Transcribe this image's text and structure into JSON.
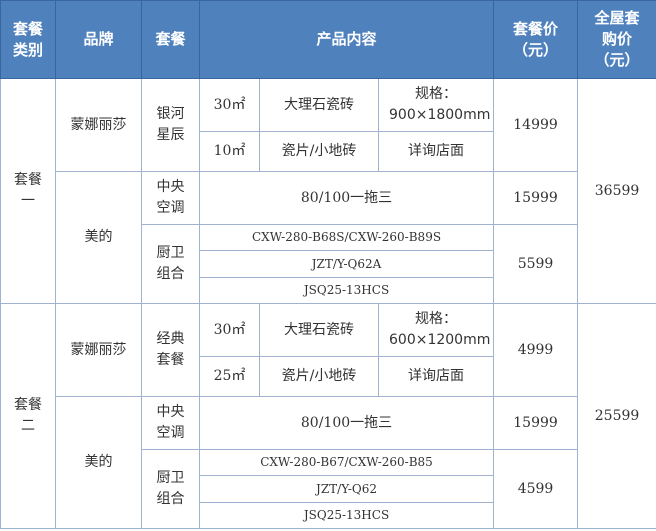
{
  "colors": {
    "header_bg": "#4f81bd",
    "header_text": "#ffffff",
    "border": "#9fb3d1"
  },
  "headers": [
    "套餐类别",
    "品牌",
    "套餐",
    "产品内容",
    "套餐价（元）",
    "全屋套购价（元）"
  ],
  "sets": [
    {
      "category": "套餐一",
      "total": "36599",
      "tile": {
        "brand": "蒙娜丽莎",
        "package": "银河星辰",
        "price": "14999",
        "rows": [
          {
            "area": "30㎡",
            "product": "大理石瓷砖",
            "spec": "规格：900×1800mm"
          },
          {
            "area": "10㎡",
            "product": "瓷片/小地砖",
            "spec": "详询店面"
          }
        ]
      },
      "midea": {
        "brand": "美的",
        "ac_name": "中央空调",
        "ac_content": "80/100一拖三",
        "ac_price": "15999",
        "kb_name": "厨卫组合",
        "kb_items": [
          "CXW-280-B68S/CXW-260-B89S",
          "JZT/Y-Q62A",
          "JSQ25-13HCS"
        ],
        "kb_price": "5599"
      }
    },
    {
      "category": "套餐二",
      "total": "25599",
      "tile": {
        "brand": "蒙娜丽莎",
        "package": "经典套餐",
        "price": "4999",
        "rows": [
          {
            "area": "30㎡",
            "product": "大理石瓷砖",
            "spec": "规格：600×1200mm"
          },
          {
            "area": "25㎡",
            "product": "瓷片/小地砖",
            "spec": "详询店面"
          }
        ]
      },
      "midea": {
        "brand": "美的",
        "ac_name": "中央空调",
        "ac_content": "80/100一拖三",
        "ac_price": "15999",
        "kb_name": "厨卫组合",
        "kb_items": [
          "CXW-280-B67/CXW-260-B85",
          "JZT/Y-Q62",
          "JSQ25-13HCS"
        ],
        "kb_price": "4599"
      }
    }
  ]
}
